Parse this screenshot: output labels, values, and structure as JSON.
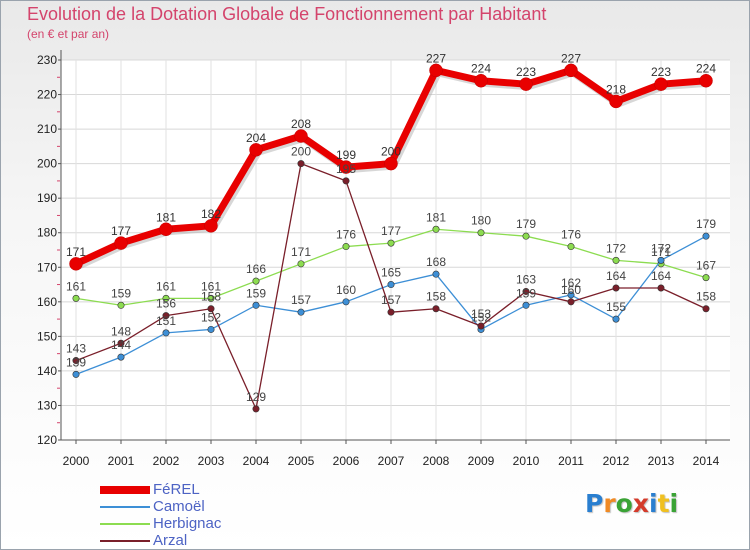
{
  "header": {
    "title": "Evolution de la Dotation Globale de Fonctionnement par Habitant",
    "subtitle": "(en € et par an)"
  },
  "logo": {
    "letters": [
      "P",
      "r",
      "o",
      "x",
      "i",
      "t",
      "i"
    ],
    "colors": [
      "#2a7fd0",
      "#f08a24",
      "#3aa335",
      "#d43b2b",
      "#2a7fd0",
      "#f0c020",
      "#3aa335"
    ]
  },
  "chart_data": {
    "type": "line",
    "x": [
      2000,
      2001,
      2002,
      2003,
      2004,
      2005,
      2006,
      2007,
      2008,
      2009,
      2010,
      2011,
      2012,
      2013,
      2014
    ],
    "ylim": [
      120,
      230
    ],
    "yticks": [
      120,
      130,
      140,
      150,
      160,
      170,
      180,
      190,
      200,
      210,
      220,
      230
    ],
    "grid": true,
    "legend_position": "bottom-left",
    "series": [
      {
        "name": "FéREL",
        "color": "#e80000",
        "values": [
          171,
          177,
          181,
          182,
          204,
          208,
          199,
          200,
          227,
          224,
          223,
          227,
          218,
          223,
          224
        ],
        "labels": [
          "171",
          "177",
          "181",
          "182",
          "204",
          "208",
          "199",
          "200",
          "227",
          "224",
          "223",
          "227",
          "218",
          "223",
          "224"
        ]
      },
      {
        "name": "Camoël",
        "color": "#3d8fd6",
        "values": [
          139,
          144,
          151,
          152,
          159,
          157,
          160,
          165,
          168,
          152,
          159,
          162,
          155,
          172,
          179
        ],
        "labels": [
          "139",
          "144",
          "151",
          "152",
          "159",
          "157",
          "160",
          "165",
          "168",
          "152",
          "159",
          "162",
          "155",
          "172",
          "179"
        ]
      },
      {
        "name": "Herbignac",
        "color": "#8cdc50",
        "values": [
          161,
          159,
          161,
          161,
          166,
          171,
          176,
          177,
          181,
          180,
          179,
          176,
          172,
          171,
          167
        ],
        "labels": [
          "161",
          "159",
          "161",
          "161",
          "166",
          "171",
          "176",
          "177",
          "181",
          "180",
          "179",
          "176",
          "172",
          "171",
          "167"
        ]
      },
      {
        "name": "Arzal",
        "color": "#7a1f2a",
        "values": [
          143,
          148,
          156,
          158,
          129,
          200,
          195,
          157,
          158,
          153,
          163,
          160,
          164,
          164,
          158
        ],
        "labels": [
          "143",
          "148",
          "156",
          "158",
          "129",
          "200",
          "195",
          "157",
          "158",
          "153",
          "163",
          "160",
          "164",
          "164",
          "158"
        ]
      }
    ]
  }
}
